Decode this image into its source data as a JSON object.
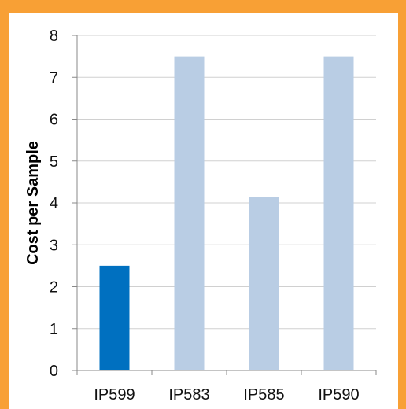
{
  "chart_data": {
    "type": "bar",
    "title": "",
    "xlabel": "",
    "ylabel": "Cost per Sample",
    "categories": [
      "IP599",
      "IP583",
      "IP585",
      "IP590"
    ],
    "values": [
      2.5,
      7.5,
      4.15,
      7.5
    ],
    "bar_colors": [
      "#0070c0",
      "#b9cde4",
      "#b9cde4",
      "#b9cde4"
    ],
    "ylim": [
      0,
      8
    ],
    "yticks": [
      "0",
      "1",
      "2",
      "3",
      "4",
      "5",
      "6",
      "7",
      "8"
    ],
    "grid": true,
    "legend": "none"
  },
  "colors": {
    "frame_border": "#f8a035",
    "gridline": "#d0d0d0",
    "axis": "#888888"
  }
}
